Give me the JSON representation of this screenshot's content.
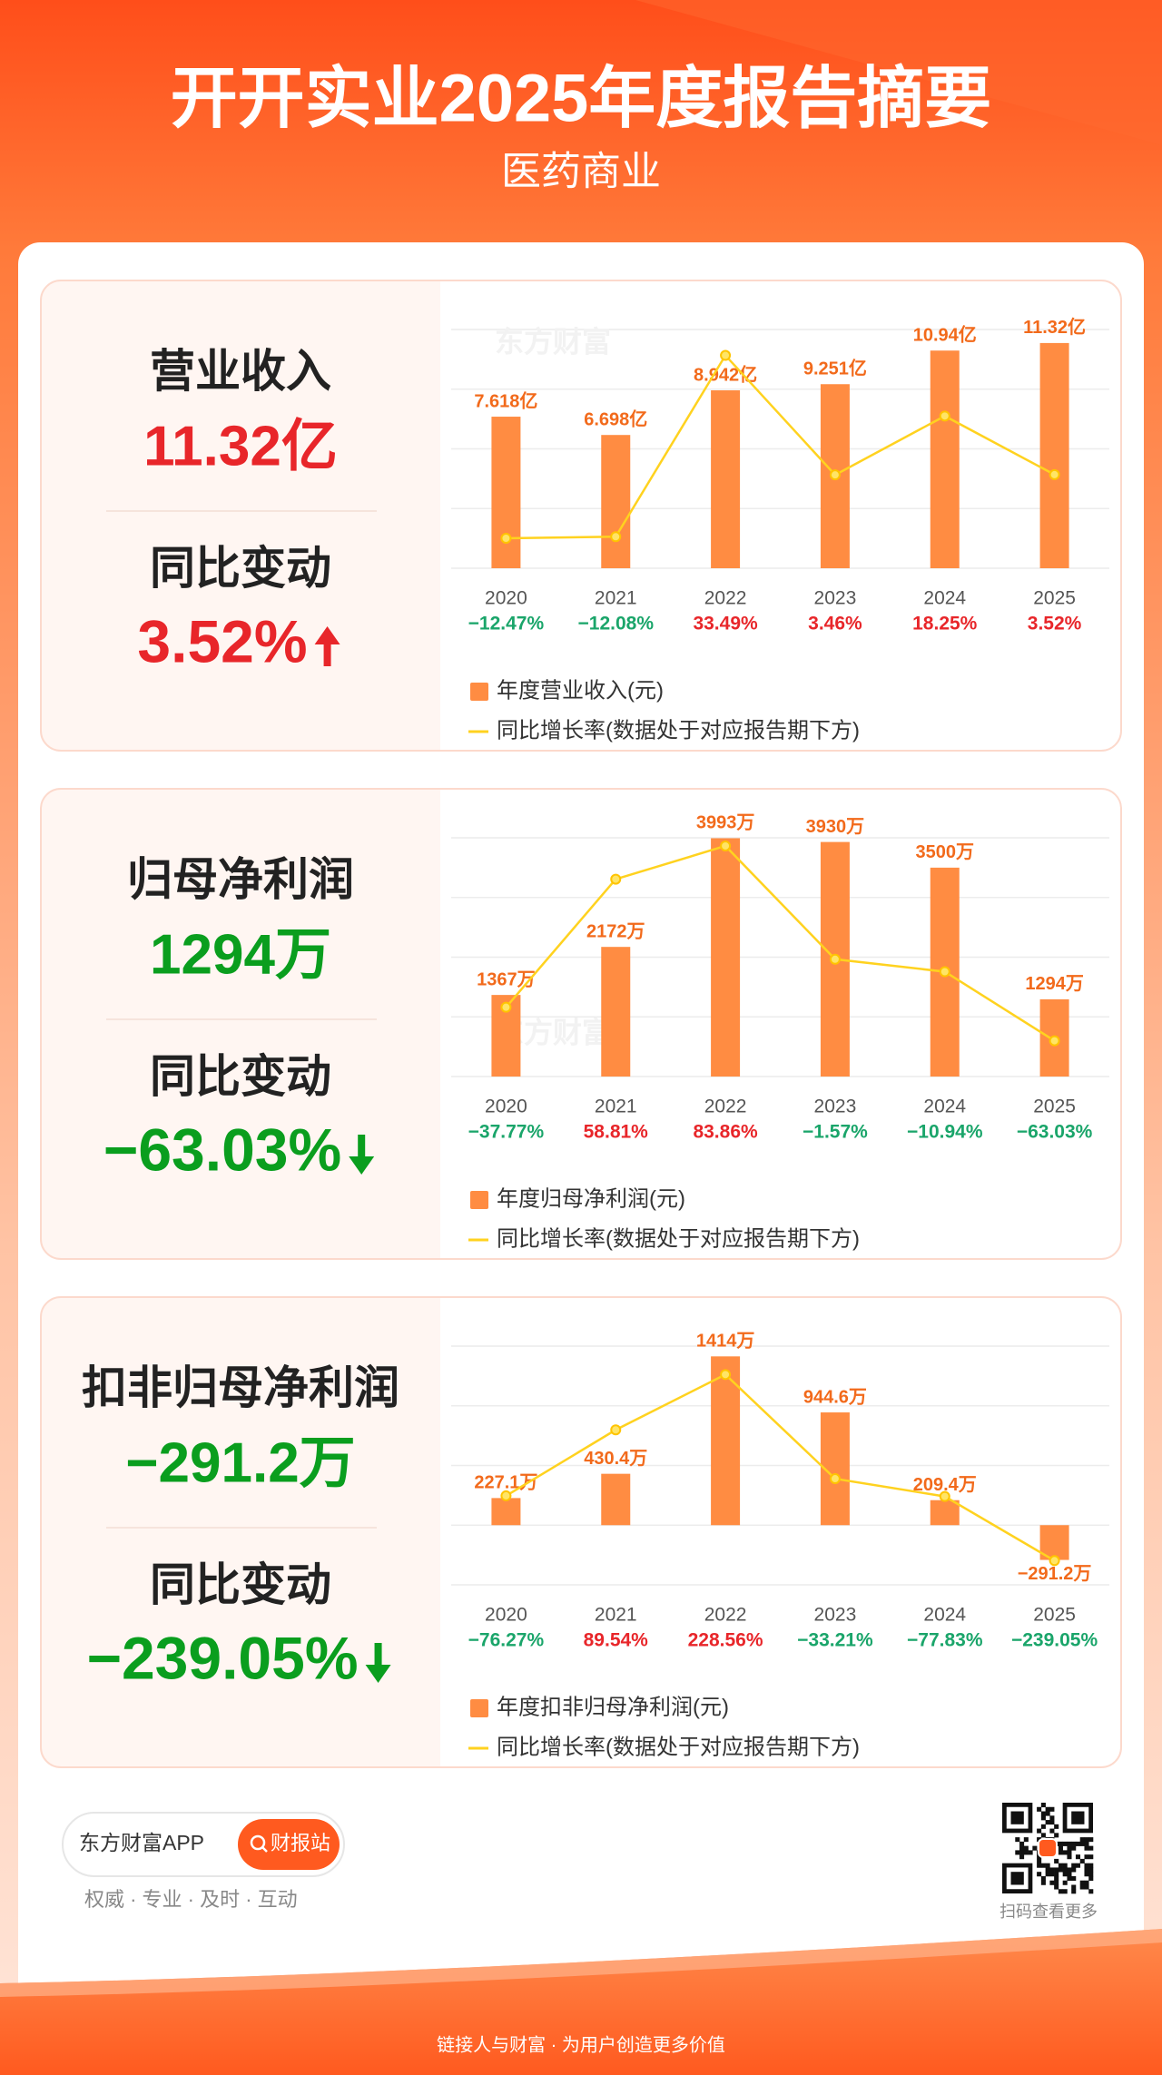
{
  "header": {
    "title": "开开实业2025年度报告摘要",
    "subtitle": "医药商业"
  },
  "watermark": "东方财富",
  "panels": [
    {
      "metric": "营业收入",
      "value": "11.32亿",
      "change_label": "同比变动",
      "change": "3.52%",
      "color": "#e8262a"
    },
    {
      "metric": "归母净利润",
      "value": "1294万",
      "change_label": "同比变动",
      "change": "−63.03%",
      "color": "#0a9e1e"
    },
    {
      "metric": "扣非归母净利润",
      "value": "−291.2万",
      "change_label": "同比变动",
      "change": "−239.05%",
      "color": "#0a9e1e"
    }
  ],
  "chart_data": [
    {
      "type": "bar",
      "categories": [
        "2020",
        "2021",
        "2022",
        "2023",
        "2024",
        "2025"
      ],
      "series": [
        {
          "name": "年度营业收入(元)",
          "color": "#ff8c42",
          "values": [
            7.618,
            6.698,
            8.942,
            9.251,
            10.94,
            11.32
          ],
          "value_labels": [
            "7.618亿",
            "6.698亿",
            "8.942亿",
            "9.251亿",
            "10.94亿",
            "11.32亿"
          ]
        },
        {
          "name": "同比增长率(数据处于对应报告期下方)",
          "type": "line",
          "axis": "y2",
          "color": "#ffd21f",
          "values": [
            -12.47,
            -12.08,
            33.49,
            3.46,
            18.25,
            3.52
          ],
          "value_labels": [
            "−12.47%",
            "−12.08%",
            "33.49%",
            "3.46%",
            "18.25%",
            "3.52%"
          ]
        }
      ],
      "ylim": [
        0,
        12
      ],
      "yticks": [
        0,
        3,
        6,
        9,
        12
      ],
      "y2lim": [
        -20,
        40
      ],
      "grid": true
    },
    {
      "type": "bar",
      "categories": [
        "2020",
        "2021",
        "2022",
        "2023",
        "2024",
        "2025"
      ],
      "series": [
        {
          "name": "年度归母净利润(元)",
          "color": "#ff8c42",
          "values": [
            1367,
            2172,
            3993,
            3930,
            3500,
            1294
          ],
          "value_labels": [
            "1367万",
            "2172万",
            "3993万",
            "3930万",
            "3500万",
            "1294万"
          ]
        },
        {
          "name": "同比增长率(数据处于对应报告期下方)",
          "type": "line",
          "axis": "y2",
          "color": "#ffd21f",
          "values": [
            -37.77,
            58.81,
            83.86,
            -1.57,
            -10.94,
            -63.03
          ],
          "value_labels": [
            "−37.77%",
            "58.81%",
            "83.86%",
            "−1.57%",
            "−10.94%",
            "−63.03%"
          ]
        }
      ],
      "ylim": [
        0,
        4000
      ],
      "yticks": [
        0,
        1000,
        2000,
        3000,
        4000
      ],
      "y2lim": [
        -90,
        90
      ],
      "grid": true
    },
    {
      "type": "bar",
      "categories": [
        "2020",
        "2021",
        "2022",
        "2023",
        "2024",
        "2025"
      ],
      "series": [
        {
          "name": "年度扣非归母净利润(元)",
          "color": "#ff8c42",
          "values": [
            227.1,
            430.4,
            1414,
            944.6,
            209.4,
            -291.2
          ],
          "value_labels": [
            "227.1万",
            "430.4万",
            "1414万",
            "944.6万",
            "209.4万",
            "−291.2万"
          ]
        },
        {
          "name": "同比增长率(数据处于对应报告期下方)",
          "type": "line",
          "axis": "y2",
          "color": "#ffd21f",
          "values": [
            -76.27,
            89.54,
            228.56,
            -33.21,
            -77.83,
            -239.05
          ],
          "value_labels": [
            "−76.27%",
            "89.54%",
            "228.56%",
            "−33.21%",
            "−77.83%",
            "−239.05%"
          ]
        }
      ],
      "ylim": [
        -500,
        1500
      ],
      "yticks": [
        -500,
        0,
        500,
        1000,
        1500
      ],
      "y2lim": [
        -300,
        300
      ],
      "grid": true
    }
  ],
  "footer": {
    "app": "东方财富APP",
    "button": "财报站",
    "slogan": "权威 · 专业 · 及时 · 互动",
    "qr_caption": "扫码查看更多",
    "tagline": "链接人与财富 · 为用户创造更多价值"
  }
}
